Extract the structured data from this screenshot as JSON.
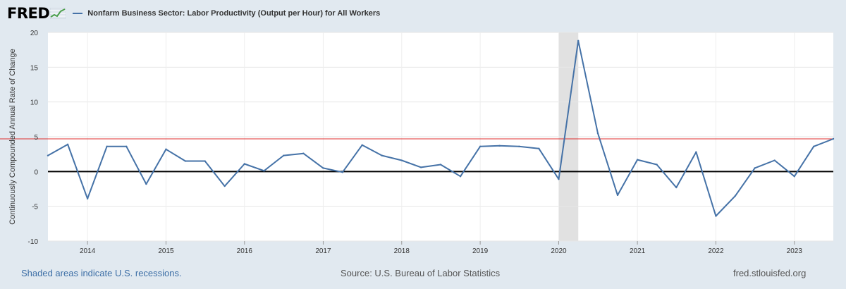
{
  "header": {
    "logo_text": "FRED",
    "series_title": "Nonfarm Business Sector: Labor Productivity (Output per Hour) for All Workers"
  },
  "footer": {
    "recession_note": "Shaded areas indicate U.S. recessions.",
    "source": "Source: U.S. Bureau of Labor Statistics",
    "site": "fred.stlouisfed.org"
  },
  "colors": {
    "series": "#4572a7",
    "reference_line": "#e03131",
    "zero_line": "#000000",
    "recession": "#e1e1e1",
    "background": "#e1e9f0"
  },
  "chart_data": {
    "type": "line",
    "ylabel": "Continuously Compounded Annual Rate of Change",
    "xlabel": "",
    "ylim": [
      -10,
      20
    ],
    "yticks": [
      -10,
      -5,
      0,
      5,
      10,
      15,
      20
    ],
    "xticks": [
      "2014",
      "2015",
      "2016",
      "2017",
      "2018",
      "2019",
      "2020",
      "2021",
      "2022",
      "2023"
    ],
    "grid": true,
    "reference_value": 4.7,
    "recession_shading": [
      {
        "start": "2020-01-01",
        "end": "2020-04-01"
      }
    ],
    "series": [
      {
        "name": "Nonfarm Business Sector: Labor Productivity (Output per Hour) for All Workers",
        "x": [
          "2013-07-01",
          "2013-10-01",
          "2014-01-01",
          "2014-04-01",
          "2014-07-01",
          "2014-10-01",
          "2015-01-01",
          "2015-04-01",
          "2015-07-01",
          "2015-10-01",
          "2016-01-01",
          "2016-04-01",
          "2016-07-01",
          "2016-10-01",
          "2017-01-01",
          "2017-04-01",
          "2017-07-01",
          "2017-10-01",
          "2018-01-01",
          "2018-04-01",
          "2018-07-01",
          "2018-10-01",
          "2019-01-01",
          "2019-04-01",
          "2019-07-01",
          "2019-10-01",
          "2020-01-01",
          "2020-04-01",
          "2020-07-01",
          "2020-10-01",
          "2021-01-01",
          "2021-04-01",
          "2021-07-01",
          "2021-10-01",
          "2022-01-01",
          "2022-04-01",
          "2022-07-01",
          "2022-10-01",
          "2023-01-01",
          "2023-04-01",
          "2023-07-01"
        ],
        "values": [
          2.3,
          3.9,
          -3.9,
          3.6,
          3.6,
          -1.8,
          3.2,
          1.5,
          1.5,
          -2.1,
          1.1,
          0.1,
          2.3,
          2.6,
          0.5,
          -0.1,
          3.8,
          2.3,
          1.6,
          0.6,
          1.0,
          -0.7,
          3.6,
          3.7,
          3.6,
          3.3,
          -1.1,
          18.8,
          5.5,
          -3.4,
          1.7,
          1.0,
          -2.3,
          2.8,
          -6.4,
          -3.5,
          0.5,
          1.6,
          -0.7,
          3.6,
          4.7
        ]
      }
    ]
  }
}
